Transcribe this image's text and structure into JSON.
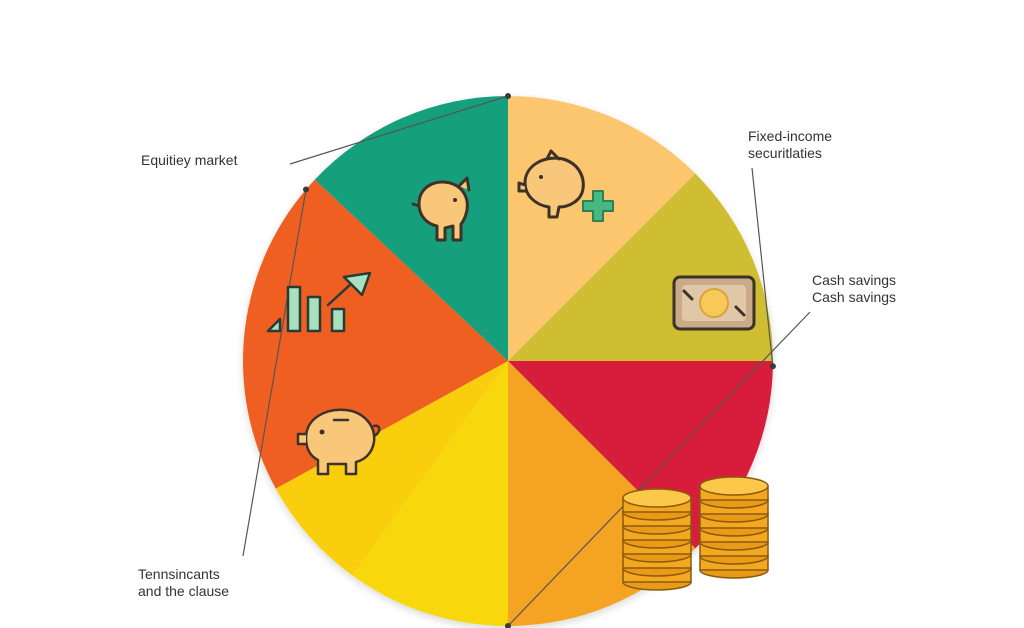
{
  "colors": {
    "slice_colors": [
      "#fbc66e",
      "#cfbd33",
      "#d81f3b",
      "#f5a321",
      "#f8d80a",
      "#f9cf0a",
      "#f05e22",
      "#159f7d"
    ],
    "icon_stroke": "#3d3228",
    "icon_fill": "#f8c77a",
    "leader_line": "#555555"
  },
  "chart_data": {
    "type": "pie",
    "title": "",
    "categories": [
      "Equitiey market",
      "",
      "Fixed-income securitlaties",
      "Cash savings",
      "",
      "",
      "Tennsincants and the clause",
      ""
    ],
    "values": [
      12.5,
      12.5,
      12.5,
      12.5,
      10,
      7,
      20,
      13
    ],
    "start_angle_deg": -90,
    "legend": "none",
    "labels": [
      {
        "lines": [
          "Equitiey market"
        ],
        "slice": 0
      },
      {
        "lines": [
          "Fixed-income",
          "securitlaties"
        ],
        "slice": 2
      },
      {
        "lines": [
          "Cash savings",
          "Cash savings"
        ],
        "slice": 3
      },
      {
        "lines": [
          "Tennsincants",
          "and the clause"
        ],
        "slice": 6
      }
    ],
    "icons": [
      "piggy-icon",
      "piggy-plus-icon",
      "money-bill-icon",
      "coin-stack-icon",
      "piggy-bank-icon",
      "growth-chart-icon"
    ]
  }
}
